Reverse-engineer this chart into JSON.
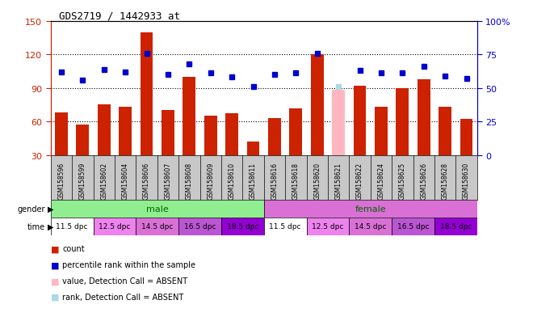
{
  "title": "GDS2719 / 1442933_at",
  "samples": [
    "GSM158596",
    "GSM158599",
    "GSM158602",
    "GSM158604",
    "GSM158606",
    "GSM158607",
    "GSM158608",
    "GSM158609",
    "GSM158610",
    "GSM158611",
    "GSM158616",
    "GSM158618",
    "GSM158620",
    "GSM158621",
    "GSM158622",
    "GSM158624",
    "GSM158625",
    "GSM158626",
    "GSM158628",
    "GSM158630"
  ],
  "bar_values": [
    68,
    57,
    75,
    73,
    140,
    70,
    100,
    65,
    67,
    42,
    63,
    72,
    120,
    88,
    92,
    73,
    90,
    98,
    73,
    62
  ],
  "bar_absent": [
    false,
    false,
    false,
    false,
    false,
    false,
    false,
    false,
    false,
    false,
    false,
    false,
    false,
    true,
    false,
    false,
    false,
    false,
    false,
    false
  ],
  "percentile_values": [
    62,
    56,
    64,
    62,
    76,
    60,
    68,
    61,
    58,
    51,
    60,
    61,
    76,
    51,
    63,
    61,
    61,
    66,
    59,
    57
  ],
  "percentile_absent": [
    false,
    false,
    false,
    false,
    false,
    false,
    false,
    false,
    false,
    false,
    false,
    false,
    false,
    true,
    false,
    false,
    false,
    false,
    false,
    false
  ],
  "gender_groups": [
    {
      "label": "male",
      "start": 0,
      "end": 9,
      "color": "#90ee90"
    },
    {
      "label": "female",
      "start": 10,
      "end": 19,
      "color": "#da70d6"
    }
  ],
  "time_labels": [
    "11.5 dpc",
    "12.5 dpc",
    "14.5 dpc",
    "16.5 dpc",
    "18.5 dpc",
    "11.5 dpc",
    "12.5 dpc",
    "14.5 dpc",
    "16.5 dpc",
    "18.5 dpc"
  ],
  "time_colors": [
    "#ffffff",
    "#ee82ee",
    "#da70d6",
    "#ba55d3",
    "#9400d3",
    "#ffffff",
    "#ee82ee",
    "#da70d6",
    "#ba55d3",
    "#9400d3"
  ],
  "time_sample_indices": [
    0,
    2,
    4,
    6,
    8,
    10,
    12,
    14,
    16,
    18
  ],
  "ylim_left": [
    30,
    150
  ],
  "ylim_right": [
    0,
    100
  ],
  "yticks_left": [
    30,
    60,
    90,
    120,
    150
  ],
  "yticks_right": [
    0,
    25,
    50,
    75,
    100
  ],
  "bar_color": "#cc2200",
  "bar_absent_color": "#ffb6c1",
  "percentile_color": "#0000cc",
  "percentile_absent_color": "#add8e6",
  "bg_color": "#ffffff",
  "plot_bg": "#ffffff",
  "label_bg": "#c8c8c8",
  "legend_items": [
    {
      "label": "count",
      "color": "#cc2200"
    },
    {
      "label": "percentile rank within the sample",
      "color": "#0000cc"
    },
    {
      "label": "value, Detection Call = ABSENT",
      "color": "#ffb6c1"
    },
    {
      "label": "rank, Detection Call = ABSENT",
      "color": "#add8e6"
    }
  ]
}
